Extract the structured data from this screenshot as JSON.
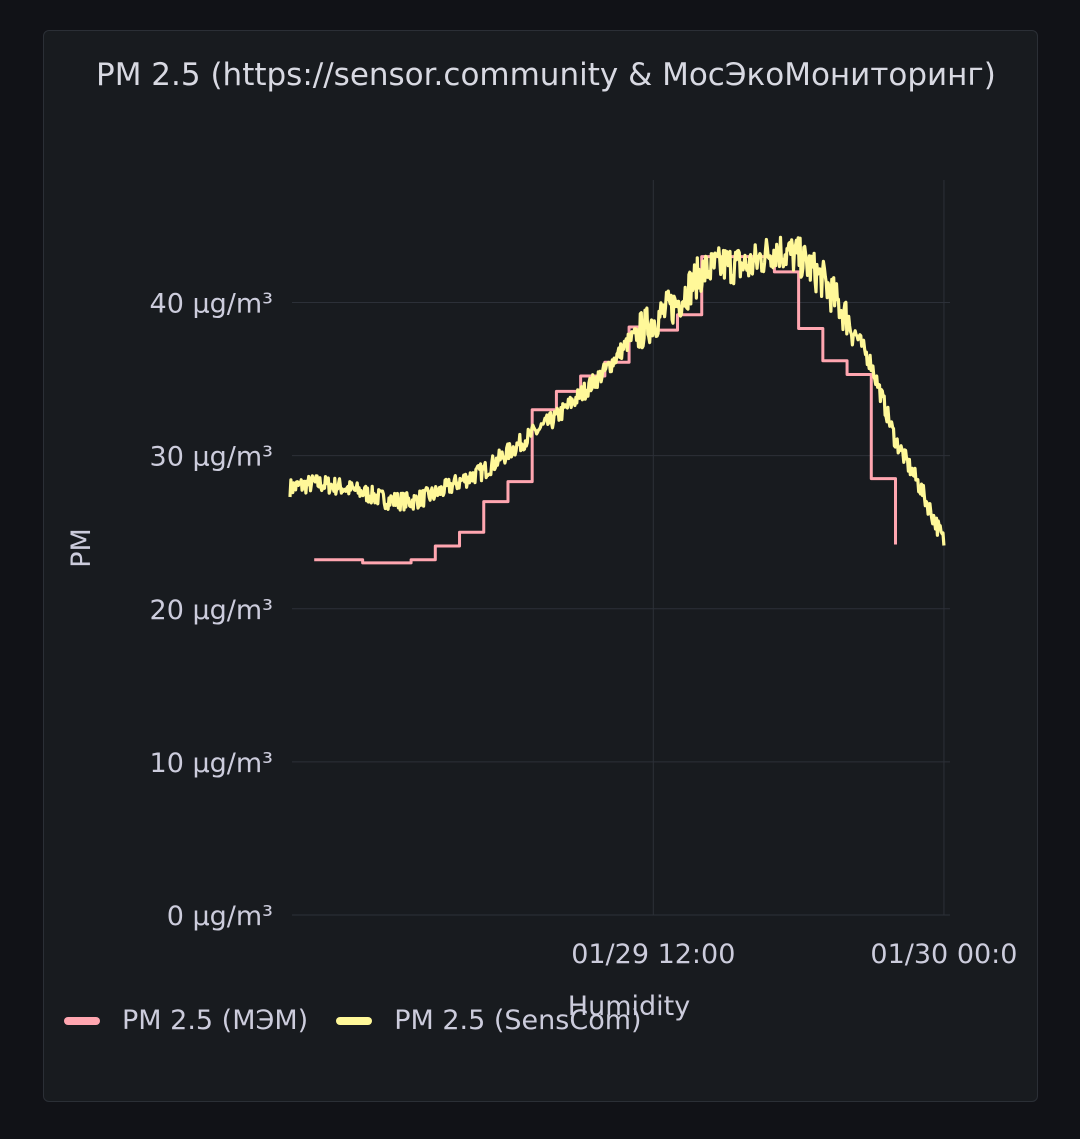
{
  "panel": {
    "title": "PM 2.5 (https://sensor.community & МосЭкоМониторинг)"
  },
  "colors": {
    "background": "#111217",
    "panel": "#181b1f",
    "grid": "#2c3038",
    "series_mem": "#ffa6b0",
    "series_senscom": "#fff899"
  },
  "chart_data": {
    "type": "line",
    "ylabel": "PM",
    "xlabel": "Humidity",
    "y_unit": "µg/m³",
    "ylim": [
      0,
      48
    ],
    "y_ticks": [
      {
        "value": 0,
        "label": "0 µg/m³"
      },
      {
        "value": 10,
        "label": "10 µg/m³"
      },
      {
        "value": 20,
        "label": "20 µg/m³"
      },
      {
        "value": 30,
        "label": "30 µg/m³"
      },
      {
        "value": 40,
        "label": "40 µg/m³"
      }
    ],
    "xlim": [
      "01/28 21:05",
      "01/30 00:15"
    ],
    "x_ticks": [
      {
        "value": "01/29 12:00",
        "label": "01/29 12:00"
      },
      {
        "value": "01/30 00:00",
        "label": "01/30 00:0"
      }
    ],
    "grid": true,
    "legend_placement": "bottom-left",
    "series": [
      {
        "name": "PM 2.5 (МЭМ)",
        "color": "#ffa6b0",
        "step": true,
        "points": [
          [
            "01/28 22:00",
            23.2
          ],
          [
            "01/28 23:00",
            23.2
          ],
          [
            "01/29 00:00",
            23.0
          ],
          [
            "01/29 01:00",
            23.0
          ],
          [
            "01/29 02:00",
            23.2
          ],
          [
            "01/29 03:00",
            24.1
          ],
          [
            "01/29 04:00",
            25.0
          ],
          [
            "01/29 05:00",
            27.0
          ],
          [
            "01/29 06:00",
            28.3
          ],
          [
            "01/29 07:00",
            33.0
          ],
          [
            "01/29 08:00",
            34.2
          ],
          [
            "01/29 09:00",
            35.2
          ],
          [
            "01/29 10:00",
            36.1
          ],
          [
            "01/29 11:00",
            38.4
          ],
          [
            "01/29 12:00",
            38.2
          ],
          [
            "01/29 13:00",
            39.2
          ],
          [
            "01/29 14:00",
            43.0
          ],
          [
            "01/29 15:00",
            43.0
          ],
          [
            "01/29 16:00",
            43.0
          ],
          [
            "01/29 17:00",
            42.0
          ],
          [
            "01/29 18:00",
            38.3
          ],
          [
            "01/29 19:00",
            36.2
          ],
          [
            "01/29 20:00",
            35.3
          ],
          [
            "01/29 21:00",
            28.5
          ],
          [
            "01/29 22:00",
            24.2
          ]
        ]
      },
      {
        "name": "PM 2.5 (SensCom)",
        "color": "#fff899",
        "step": false,
        "points": [
          [
            "01/28 21:00",
            27.9
          ],
          [
            "01/28 22:00",
            28.2
          ],
          [
            "01/28 23:00",
            28.0
          ],
          [
            "01/29 00:00",
            27.6
          ],
          [
            "01/29 01:00",
            27.1
          ],
          [
            "01/29 02:00",
            27.0
          ],
          [
            "01/29 03:00",
            27.5
          ],
          [
            "01/29 04:00",
            28.3
          ],
          [
            "01/29 05:00",
            29.0
          ],
          [
            "01/29 06:00",
            30.2
          ],
          [
            "01/29 07:00",
            31.4
          ],
          [
            "01/29 08:00",
            32.5
          ],
          [
            "01/29 09:00",
            34.0
          ],
          [
            "01/29 10:00",
            35.5
          ],
          [
            "01/29 11:00",
            37.5
          ],
          [
            "01/29 12:00",
            38.8
          ],
          [
            "01/29 13:00",
            40.0
          ],
          [
            "01/29 14:00",
            42.0
          ],
          [
            "01/29 15:00",
            42.5
          ],
          [
            "01/29 16:00",
            42.4
          ],
          [
            "01/29 17:00",
            43.5
          ],
          [
            "01/29 18:00",
            43.0
          ],
          [
            "01/29 19:00",
            41.5
          ],
          [
            "01/29 20:00",
            39.0
          ],
          [
            "01/29 21:00",
            36.0
          ],
          [
            "01/29 22:00",
            31.0
          ],
          [
            "01/29 23:00",
            28.0
          ],
          [
            "01/30 00:00",
            24.4
          ]
        ]
      }
    ]
  }
}
